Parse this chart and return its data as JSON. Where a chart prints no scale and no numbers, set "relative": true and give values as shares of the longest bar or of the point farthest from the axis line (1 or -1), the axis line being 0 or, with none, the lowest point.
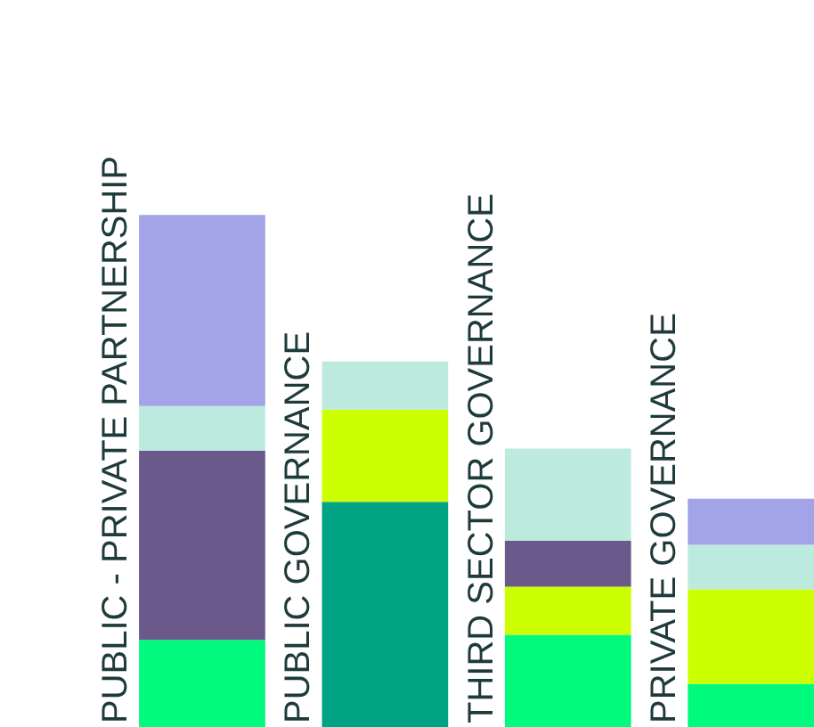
{
  "chart_data": {
    "type": "bar",
    "stacked": true,
    "relative": true,
    "categories": [
      "PUBLIC - PRIVATE PARTNERSHIP",
      "PUBLIC GOVERNANCE",
      "THIRD SECTOR GOVERNANCE",
      "PRIVATE GOVERNANCE"
    ],
    "series": [
      {
        "color": "#00fa7d",
        "values": [
          0.17,
          0,
          0.18,
          0.084
        ]
      },
      {
        "color": "#00a383",
        "values": [
          0,
          0.44,
          0,
          0
        ]
      },
      {
        "color": "#ccff00",
        "values": [
          0,
          0.18,
          0.094,
          0.185
        ]
      },
      {
        "color": "#6a5a8c",
        "values": [
          0.37,
          0,
          0.09,
          0
        ]
      },
      {
        "color": "#bdeadf",
        "values": [
          0.087,
          0.094,
          0.18,
          0.087
        ]
      },
      {
        "color": "#a3a3e8",
        "values": [
          0.373,
          0,
          0,
          0.09
        ]
      }
    ]
  }
}
